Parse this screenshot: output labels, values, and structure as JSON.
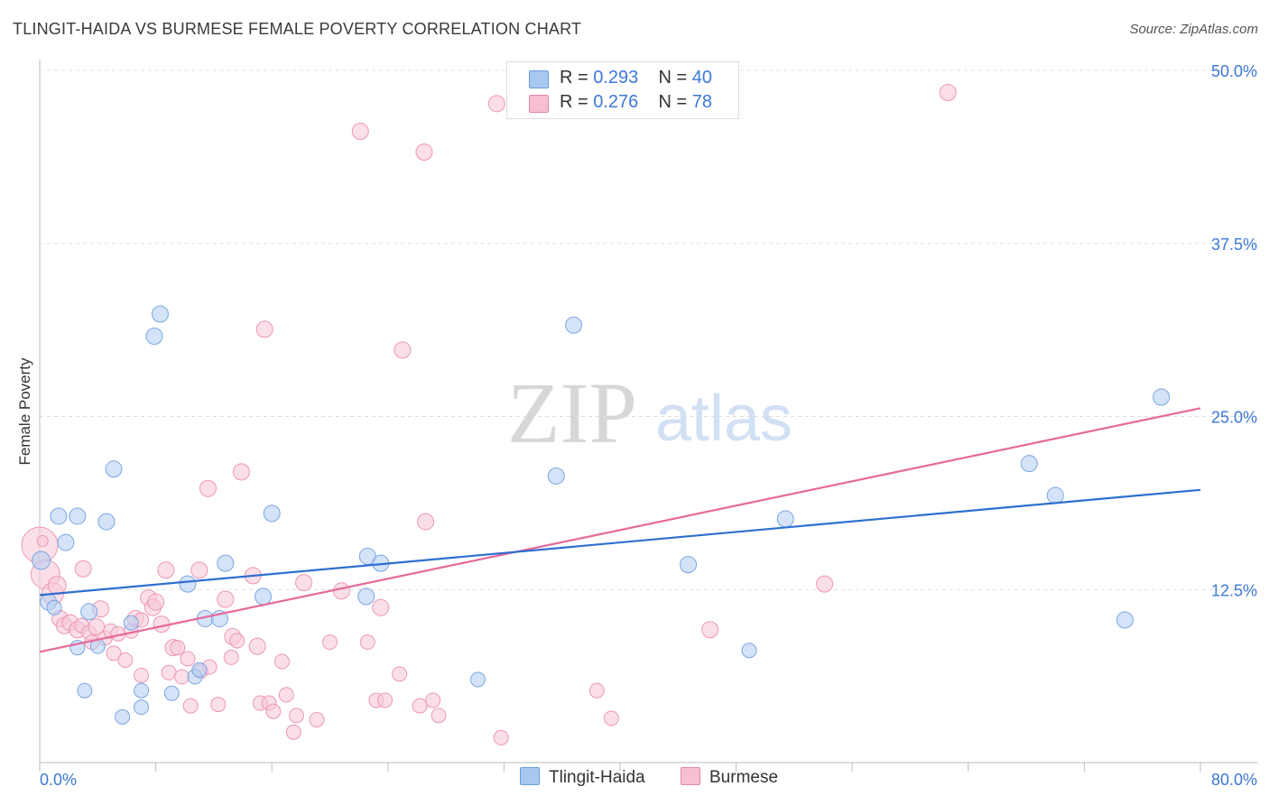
{
  "header": {
    "title": "TLINGIT-HAIDA VS BURMESE FEMALE POVERTY CORRELATION CHART",
    "source": "Source: ZipAtlas.com"
  },
  "watermark": {
    "part1": "ZIP",
    "part2": "atlas"
  },
  "legend": {
    "r_label": "R =",
    "n_label": "N =",
    "items": [
      {
        "name": "Tlingit-Haida",
        "r": "0.293",
        "n": "40",
        "fill": "#a9c8f0",
        "stroke": "#6a9de0"
      },
      {
        "name": "Burmese",
        "r": "0.276",
        "n": "78",
        "fill": "#f7bfd0",
        "stroke": "#e889a6"
      }
    ]
  },
  "colors": {
    "blue_line": "#2f6fd0",
    "pink_line": "#e5699a",
    "blue_fill": "#b7d1f3",
    "blue_stroke": "#7aa6e2",
    "pink_fill": "#f9c9d8",
    "pink_stroke": "#ec97b2",
    "tick_text": "#3c78d8",
    "grid": "#dddddd"
  },
  "chart_data": {
    "type": "scatter",
    "title": "TLINGIT-HAIDA VS BURMESE FEMALE POVERTY CORRELATION CHART",
    "xlabel": "",
    "ylabel": "Female Poverty",
    "xlim": [
      0,
      80
    ],
    "ylim": [
      0,
      50
    ],
    "x_tick_labels": [
      "0.0%",
      "80.0%"
    ],
    "y_ticks": [
      12.5,
      25.0,
      37.5,
      50.0
    ],
    "y_tick_labels": [
      "12.5%",
      "25.0%",
      "37.5%",
      "50.0%"
    ],
    "grid": true,
    "series": [
      {
        "name": "Tlingit-Haida",
        "r": 0.293,
        "n": 40,
        "trend": {
          "x": [
            0,
            80
          ],
          "y": [
            12.1,
            19.7
          ]
        },
        "points": [
          [
            0.1,
            14.6,
            10
          ],
          [
            0.6,
            11.6,
            9
          ],
          [
            1.0,
            11.2,
            8
          ],
          [
            1.3,
            17.8,
            9
          ],
          [
            1.8,
            15.9,
            9
          ],
          [
            2.6,
            8.3,
            8
          ],
          [
            2.6,
            17.8,
            9
          ],
          [
            3.1,
            5.2,
            8
          ],
          [
            3.4,
            10.9,
            9
          ],
          [
            4.0,
            8.4,
            8
          ],
          [
            4.6,
            17.4,
            9
          ],
          [
            5.1,
            21.2,
            9
          ],
          [
            5.7,
            3.3,
            8
          ],
          [
            6.3,
            10.1,
            8
          ],
          [
            7.0,
            5.2,
            8
          ],
          [
            7.0,
            4.0,
            8
          ],
          [
            7.9,
            30.8,
            9
          ],
          [
            8.3,
            32.4,
            9
          ],
          [
            9.1,
            5.0,
            8
          ],
          [
            10.2,
            12.9,
            9
          ],
          [
            10.7,
            6.2,
            8
          ],
          [
            11.0,
            6.7,
            8
          ],
          [
            11.4,
            10.4,
            9
          ],
          [
            12.4,
            10.4,
            9
          ],
          [
            12.8,
            14.4,
            9
          ],
          [
            15.4,
            12.0,
            9
          ],
          [
            16.0,
            18.0,
            9
          ],
          [
            22.5,
            12.0,
            9
          ],
          [
            22.6,
            14.9,
            9
          ],
          [
            23.5,
            14.4,
            9
          ],
          [
            30.2,
            6.0,
            8
          ],
          [
            35.6,
            20.7,
            9
          ],
          [
            36.8,
            31.6,
            9
          ],
          [
            44.7,
            14.3,
            9
          ],
          [
            48.9,
            8.1,
            8
          ],
          [
            51.4,
            17.6,
            9
          ],
          [
            68.2,
            21.6,
            9
          ],
          [
            70.0,
            19.3,
            9
          ],
          [
            74.8,
            10.3,
            9
          ],
          [
            77.3,
            26.4,
            9
          ]
        ]
      },
      {
        "name": "Burmese",
        "r": 0.276,
        "n": 78,
        "trend": {
          "x": [
            0,
            80
          ],
          "y": [
            8.0,
            25.6
          ]
        },
        "points": [
          [
            0.0,
            15.7,
            20
          ],
          [
            0.4,
            13.6,
            16
          ],
          [
            0.9,
            12.2,
            12
          ],
          [
            1.2,
            12.8,
            10
          ],
          [
            1.4,
            10.4,
            9
          ],
          [
            1.7,
            9.9,
            9
          ],
          [
            2.1,
            10.1,
            9
          ],
          [
            2.6,
            9.6,
            9
          ],
          [
            2.9,
            9.9,
            8
          ],
          [
            3.0,
            14.0,
            9
          ],
          [
            3.4,
            9.4,
            8
          ],
          [
            3.6,
            8.7,
            8
          ],
          [
            3.9,
            9.8,
            9
          ],
          [
            4.2,
            11.1,
            9
          ],
          [
            4.5,
            9.0,
            8
          ],
          [
            4.9,
            9.5,
            8
          ],
          [
            5.1,
            7.9,
            8
          ],
          [
            5.4,
            9.3,
            8
          ],
          [
            5.9,
            7.4,
            8
          ],
          [
            6.3,
            9.5,
            8
          ],
          [
            6.6,
            10.4,
            9
          ],
          [
            7.0,
            6.3,
            8
          ],
          [
            7.0,
            10.3,
            8
          ],
          [
            7.5,
            11.9,
            9
          ],
          [
            7.8,
            11.2,
            9
          ],
          [
            8.0,
            11.6,
            9
          ],
          [
            8.4,
            10.0,
            9
          ],
          [
            8.7,
            13.9,
            9
          ],
          [
            8.9,
            6.5,
            8
          ],
          [
            9.2,
            8.3,
            9
          ],
          [
            9.5,
            8.3,
            8
          ],
          [
            9.8,
            6.2,
            8
          ],
          [
            10.2,
            7.5,
            8
          ],
          [
            10.4,
            4.1,
            8
          ],
          [
            11.0,
            13.9,
            9
          ],
          [
            11.1,
            6.6,
            8
          ],
          [
            11.6,
            19.8,
            9
          ],
          [
            11.7,
            6.9,
            8
          ],
          [
            12.3,
            4.2,
            8
          ],
          [
            12.8,
            11.8,
            9
          ],
          [
            13.2,
            7.6,
            8
          ],
          [
            13.3,
            9.1,
            9
          ],
          [
            13.6,
            8.8,
            8
          ],
          [
            13.9,
            21.0,
            9
          ],
          [
            14.7,
            13.5,
            9
          ],
          [
            15.0,
            8.4,
            9
          ],
          [
            15.2,
            4.3,
            8
          ],
          [
            15.5,
            31.3,
            9
          ],
          [
            15.8,
            4.3,
            8
          ],
          [
            16.1,
            3.7,
            8
          ],
          [
            16.7,
            7.3,
            8
          ],
          [
            17.0,
            4.9,
            8
          ],
          [
            17.5,
            2.2,
            8
          ],
          [
            17.7,
            3.4,
            8
          ],
          [
            18.2,
            13.0,
            9
          ],
          [
            19.1,
            3.1,
            8
          ],
          [
            20.0,
            8.7,
            8
          ],
          [
            20.8,
            12.4,
            9
          ],
          [
            22.1,
            45.6,
            9
          ],
          [
            22.6,
            8.7,
            8
          ],
          [
            23.2,
            4.5,
            8
          ],
          [
            23.5,
            11.2,
            9
          ],
          [
            23.8,
            4.5,
            8
          ],
          [
            24.8,
            6.4,
            8
          ],
          [
            25.0,
            29.8,
            9
          ],
          [
            26.2,
            4.1,
            8
          ],
          [
            26.5,
            44.1,
            9
          ],
          [
            26.6,
            17.4,
            9
          ],
          [
            27.1,
            4.5,
            8
          ],
          [
            27.5,
            3.4,
            8
          ],
          [
            31.5,
            47.6,
            9
          ],
          [
            31.8,
            1.8,
            8
          ],
          [
            38.4,
            5.2,
            8
          ],
          [
            39.4,
            3.2,
            8
          ],
          [
            46.2,
            9.6,
            9
          ],
          [
            54.1,
            12.9,
            9
          ],
          [
            62.6,
            48.4,
            9
          ],
          [
            0.2,
            16.0,
            6
          ]
        ]
      }
    ]
  }
}
